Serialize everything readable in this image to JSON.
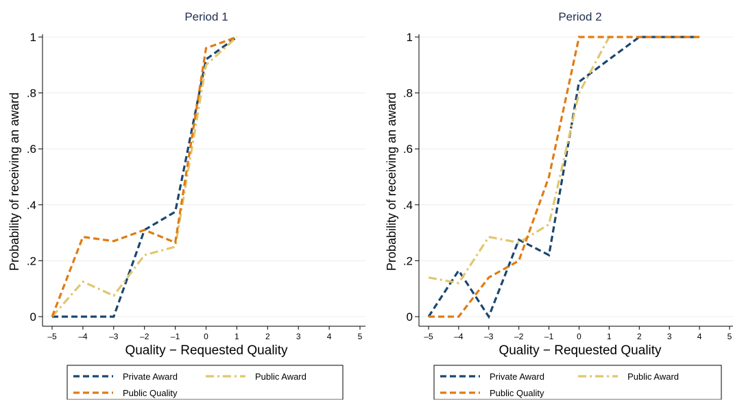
{
  "chart_data": [
    {
      "type": "line",
      "title": "Period 1",
      "xlabel": "Quality − Requested Quality",
      "ylabel": "Probability of receiving an award",
      "xlim": [
        -5,
        5
      ],
      "ylim": [
        0,
        1
      ],
      "x_ticks": [
        -5,
        -4,
        -3,
        -2,
        -1,
        0,
        1,
        2,
        3,
        4,
        5
      ],
      "x_tick_labels": [
        "–5",
        "–4",
        "–3",
        "–2",
        "–1",
        "0",
        "1",
        "2",
        "3",
        "4",
        "5"
      ],
      "y_ticks": [
        0,
        0.2,
        0.4,
        0.6,
        0.8,
        1
      ],
      "y_tick_labels": [
        "0",
        ".2",
        ".4",
        ".6",
        ".8",
        "1"
      ],
      "grid": true,
      "legend_position": "bottom",
      "series": [
        {
          "name": "Private Award",
          "color": "#1a476f",
          "dash": "dash",
          "x": [
            -5,
            -4,
            -3,
            -2,
            -1,
            0,
            1
          ],
          "y": [
            0,
            0,
            0,
            0.31,
            0.375,
            0.92,
            1
          ]
        },
        {
          "name": "Public Award",
          "color": "#e1c66e",
          "dash": "dashdot",
          "x": [
            -5,
            -4,
            -3,
            -2,
            -1,
            0,
            1
          ],
          "y": [
            0,
            0.125,
            0.075,
            0.22,
            0.25,
            0.9,
            1
          ]
        },
        {
          "name": "Public Quality",
          "color": "#e07b12",
          "dash": "dash",
          "x": [
            -5,
            -4,
            -3,
            -2,
            -1,
            0,
            1
          ],
          "y": [
            0,
            0.285,
            0.27,
            0.31,
            0.265,
            0.96,
            1
          ]
        }
      ]
    },
    {
      "type": "line",
      "title": "Period 2",
      "xlabel": "Quality − Requested Quality",
      "ylabel": "Probability of receiving an award",
      "xlim": [
        -5,
        5
      ],
      "ylim": [
        0,
        1
      ],
      "x_ticks": [
        -5,
        -4,
        -3,
        -2,
        -1,
        0,
        1,
        2,
        3,
        4,
        5
      ],
      "x_tick_labels": [
        "–5",
        "–4",
        "–3",
        "–2",
        "–1",
        "0",
        "1",
        "2",
        "3",
        "4",
        "5"
      ],
      "y_ticks": [
        0,
        0.2,
        0.4,
        0.6,
        0.8,
        1
      ],
      "y_tick_labels": [
        "0",
        ".2",
        ".4",
        ".6",
        ".8",
        "1"
      ],
      "grid": true,
      "legend_position": "bottom",
      "series": [
        {
          "name": "Private Award",
          "color": "#1a476f",
          "dash": "dash",
          "x": [
            -5,
            -4,
            -3,
            -2,
            -1,
            0,
            1,
            2,
            3,
            4
          ],
          "y": [
            0,
            0.165,
            0,
            0.275,
            0.22,
            0.84,
            0.92,
            1,
            1,
            1
          ]
        },
        {
          "name": "Public Award",
          "color": "#e1c66e",
          "dash": "dashdot",
          "x": [
            -5,
            -4,
            -3,
            -2,
            -1,
            0,
            1
          ],
          "y": [
            0.14,
            0.12,
            0.285,
            0.265,
            0.33,
            0.8,
            1
          ]
        },
        {
          "name": "Public Quality",
          "color": "#e07b12",
          "dash": "dash",
          "x": [
            -5,
            -4,
            -3,
            -2,
            -1,
            0,
            1,
            2,
            3,
            4
          ],
          "y": [
            0,
            0,
            0.14,
            0.2,
            0.5,
            1,
            1,
            1,
            1,
            1
          ]
        }
      ]
    }
  ]
}
